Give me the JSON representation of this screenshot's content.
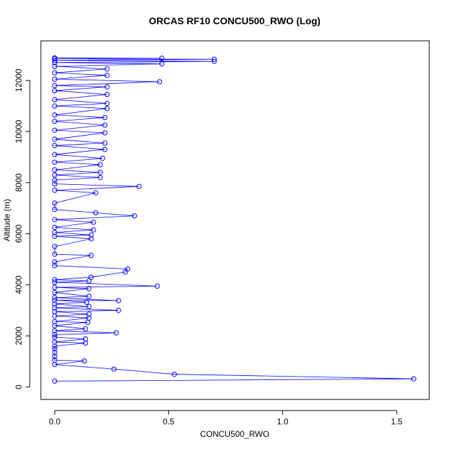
{
  "chart_data": {
    "type": "line",
    "title": "ORCAS RF10 CONCU500_RWO (Log)",
    "x_label": "CONCU500_RWO",
    "y_label": "Altitude (m)",
    "series": [
      {
        "name": "CONCU500_RWO",
        "color": "#0000ff",
        "x": [
          0,
          1.575,
          0.525,
          0.26,
          0,
          0.13,
          0,
          0,
          0,
          0,
          0,
          0.135,
          0,
          0.135,
          0,
          0,
          0.27,
          0,
          0.135,
          0,
          0.145,
          0,
          0.15,
          0,
          0.15,
          0,
          0.28,
          0,
          0.15,
          0,
          0.14,
          0,
          0.28,
          0,
          0.15,
          0,
          0.15,
          0,
          0.45,
          0,
          0.15,
          0,
          0.16,
          0.31,
          0.32,
          0,
          0,
          0.16,
          0,
          0,
          0.16,
          0,
          0.16,
          0,
          0.17,
          0,
          0.17,
          0,
          0.35,
          0.18,
          0,
          0,
          0.18,
          0,
          0.37,
          0,
          0,
          0.2,
          0,
          0.2,
          0,
          0.2,
          0,
          0.21,
          0,
          0.22,
          0,
          0.22,
          0,
          0.22,
          0,
          0.22,
          0,
          0.22,
          0,
          0.23,
          0,
          0.23,
          0,
          0.23,
          0,
          0.23,
          0,
          0.46,
          0,
          0.23,
          0,
          0.23,
          0,
          0.47,
          0,
          0.7,
          0,
          0.7,
          0,
          0.47,
          0
        ],
        "values": [
          230,
          320,
          500,
          700,
          880,
          1020,
          1050,
          1200,
          1350,
          1500,
          1600,
          1720,
          1760,
          1880,
          1950,
          2050,
          2120,
          2200,
          2280,
          2400,
          2530,
          2560,
          2700,
          2780,
          2850,
          2950,
          3000,
          3100,
          3150,
          3250,
          3320,
          3400,
          3380,
          3500,
          3550,
          3700,
          3850,
          3900,
          3950,
          4100,
          4150,
          4200,
          4300,
          4500,
          4620,
          4750,
          4900,
          5150,
          5200,
          5500,
          5800,
          5900,
          5950,
          6050,
          6150,
          6250,
          6450,
          6550,
          6700,
          6820,
          6950,
          7200,
          7600,
          7700,
          7850,
          7950,
          8100,
          8200,
          8300,
          8400,
          8500,
          8700,
          8800,
          8950,
          9100,
          9300,
          9450,
          9550,
          9700,
          9950,
          10050,
          10250,
          10400,
          10550,
          10650,
          10900,
          11000,
          11100,
          11250,
          11450,
          11600,
          11750,
          11800,
          11950,
          12050,
          12200,
          12300,
          12450,
          12550,
          12650,
          12700,
          12750,
          12780,
          12830,
          12850,
          12870,
          12880
        ]
      }
    ],
    "xlim": [
      -0.0607,
      1.643
    ],
    "ylim": [
      -488,
      13550
    ],
    "xticks": [
      {
        "value": 0,
        "label": "0.0"
      },
      0.5,
      {
        "value": 1,
        "label": "1.0"
      },
      1.5
    ],
    "yticks": [
      0,
      2000,
      4000,
      6000,
      8000,
      10000,
      12000
    ],
    "grid": false
  }
}
